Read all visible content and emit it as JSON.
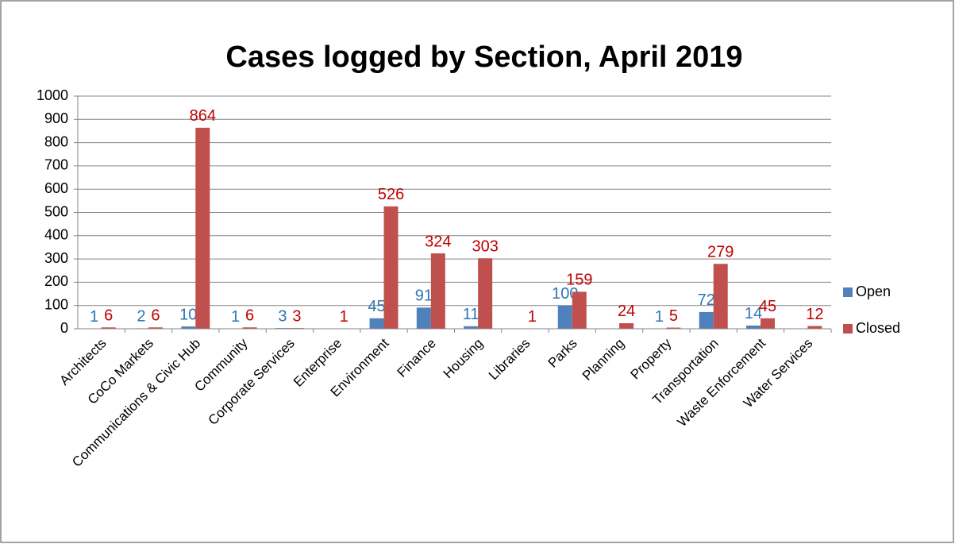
{
  "chart_data": {
    "type": "bar",
    "title": "Cases logged by Section, April 2019",
    "categories": [
      "Architects",
      "CoCo Markets",
      "Communications & Civic Hub",
      "Community",
      "Corporate Services",
      "Enterprise",
      "Environment",
      "Finance",
      "Housing",
      "Libraries",
      "Parks",
      "Planning",
      "Property",
      "Transportation",
      "Waste Enforcement",
      "Water Services"
    ],
    "series": [
      {
        "name": "Open",
        "color": "#4f81bd",
        "label_color": "#2e75b6",
        "values": [
          1,
          2,
          10,
          1,
          3,
          null,
          45,
          91,
          11,
          null,
          100,
          null,
          1,
          72,
          14,
          null
        ]
      },
      {
        "name": "Closed",
        "color": "#c0504d",
        "label_color": "#c00000",
        "values": [
          6,
          6,
          864,
          6,
          3,
          1,
          526,
          324,
          303,
          1,
          159,
          24,
          5,
          279,
          45,
          12
        ]
      }
    ],
    "ylim": [
      0,
      1000
    ],
    "yticks": [
      0,
      100,
      200,
      300,
      400,
      500,
      600,
      700,
      800,
      900,
      1000
    ],
    "grid": true,
    "legend": "right"
  }
}
